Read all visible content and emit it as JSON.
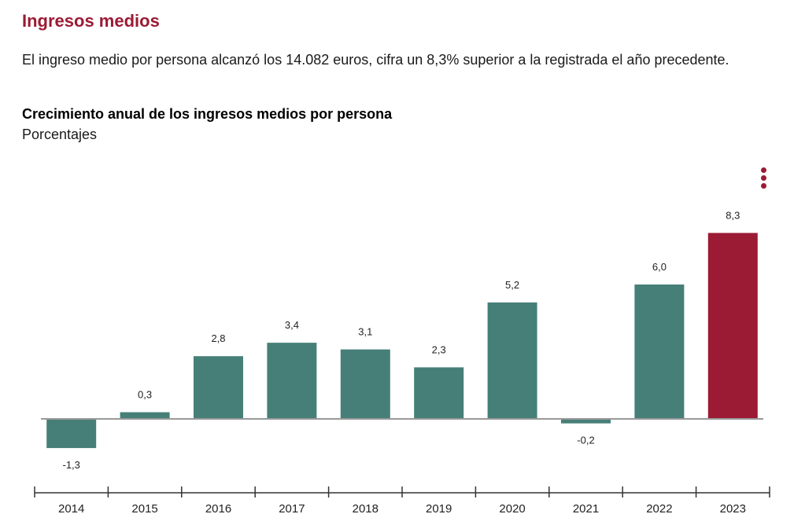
{
  "header": {
    "section_title": "Ingresos medios",
    "intro": "El ingreso medio por persona alcanzó los 14.082 euros, cifra un 8,3% superior a la registrada el año precedente."
  },
  "chart_data": {
    "type": "bar",
    "title": "Crecimiento anual de los ingresos medios por persona",
    "subtitle": "Porcentajes",
    "categories": [
      "2014",
      "2015",
      "2016",
      "2017",
      "2018",
      "2019",
      "2020",
      "2021",
      "2022",
      "2023"
    ],
    "values": [
      -1.3,
      0.3,
      2.8,
      3.4,
      3.1,
      2.3,
      5.2,
      -0.2,
      6.0,
      8.3
    ],
    "value_labels": [
      "-1,3",
      "0,3",
      "2,8",
      "3,4",
      "3,1",
      "2,3",
      "5,2",
      "-0,2",
      "6,0",
      "8,3"
    ],
    "highlight_category": "2023",
    "xlabel": "",
    "ylabel": "",
    "ylim": [
      -3,
      9
    ],
    "grid": false,
    "legend": "none",
    "colors": {
      "default": "#467f78",
      "highlight": "#9b1b34",
      "baseline": "#999999",
      "axis": "#333333"
    }
  },
  "menu": {
    "icon": "more-vertical-icon"
  }
}
